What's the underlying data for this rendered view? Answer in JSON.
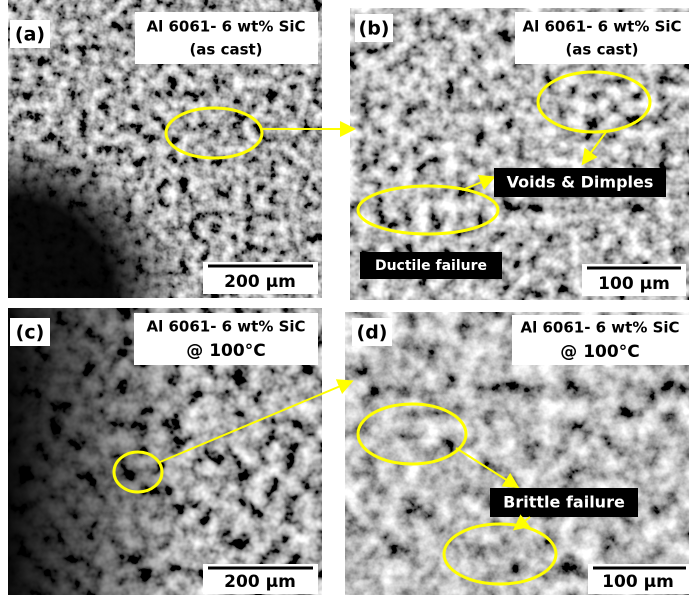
{
  "panels": [
    {
      "label": "(a)",
      "title": [
        "Al 6061- 6 wt% SiC",
        "(as cast)"
      ],
      "scale_bar": "200 µm"
    },
    {
      "label": "(b)",
      "title": [
        "Al 6061- 6 wt% SiC",
        "(as cast)"
      ],
      "scale_bar": "100 µm",
      "annotations": [
        "Voids & Dimples",
        "Ductile failure"
      ]
    },
    {
      "label": "(c)",
      "title": [
        "Al 6061- 6 wt% SiC",
        "@ 100°C"
      ],
      "scale_bar": "200 µm"
    },
    {
      "label": "(d)",
      "title": [
        "Al 6061- 6 wt% SiC",
        "@ 100°C"
      ],
      "scale_bar": "100 µm",
      "annotations": [
        "Brittle failure"
      ]
    }
  ]
}
